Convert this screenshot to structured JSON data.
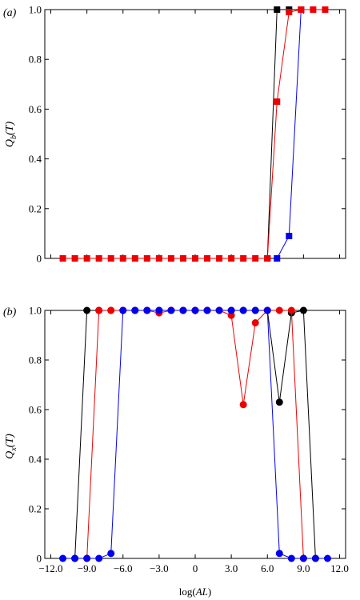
{
  "chart_data": [
    {
      "panel_label": "(a)",
      "type": "line",
      "ylabel": "Q_b(T)",
      "ylabel_main": "Q",
      "ylabel_sub": "b",
      "ylabel_tail": "(T)",
      "xlabel": "",
      "xlim": [
        -12.5,
        12.5
      ],
      "ylim": [
        0,
        1
      ],
      "yticks": [
        0,
        0.2,
        0.4,
        0.6,
        0.8,
        1.0
      ],
      "ytick_labels": [
        "0",
        "0.2",
        "0.4",
        "0.6",
        "0.8",
        "1.0"
      ],
      "xticks": [
        -12,
        -9,
        -6,
        -3,
        0,
        3,
        6,
        9,
        12
      ],
      "xtick_labels": [],
      "marker": "square",
      "series": [
        {
          "color": "#000000",
          "x": [
            6.0,
            6.8,
            7.8
          ],
          "y": [
            0,
            1,
            1
          ]
        },
        {
          "color": "#0000ee",
          "x": [
            6.8,
            7.8,
            8.8
          ],
          "y": [
            0,
            0.09,
            1
          ]
        },
        {
          "color": "#ee0000",
          "x": [
            -11.0,
            -10.0,
            -9.0,
            -8.0,
            -7.0,
            -6.0,
            -5.0,
            -4.0,
            -3.0,
            -2.0,
            -1.0,
            0.0,
            1.0,
            2.0,
            3.0,
            4.0,
            5.0,
            6.0,
            6.8,
            7.8,
            8.8,
            9.8,
            10.8
          ],
          "y": [
            0,
            0,
            0,
            0,
            0,
            0,
            0,
            0,
            0,
            0,
            0,
            0,
            0,
            0,
            0,
            0,
            0,
            0,
            0.63,
            0.99,
            1,
            1,
            1
          ]
        }
      ]
    },
    {
      "panel_label": "(b)",
      "type": "line",
      "ylabel": "Q_x(T)",
      "ylabel_main": "Q",
      "ylabel_sub": "x",
      "ylabel_tail": "(T)",
      "xlabel": "log(AL)",
      "xlabel_pre": "log(",
      "xlabel_it": "AL",
      "xlabel_post": ")",
      "xlim": [
        -12.5,
        12.5
      ],
      "ylim": [
        0,
        1
      ],
      "yticks": [
        0,
        0.2,
        0.4,
        0.6,
        0.8,
        1.0
      ],
      "ytick_labels": [
        "0",
        "0.2",
        "0.4",
        "0.6",
        "0.8",
        "1.0"
      ],
      "xticks": [
        -12,
        -9,
        -6,
        -3,
        0,
        3,
        6,
        9,
        12
      ],
      "xtick_labels": [
        "−12.0",
        "−9.0",
        "−6.0",
        "−3.0",
        "0",
        "3.0",
        "6.0",
        "9.0",
        "12.0"
      ],
      "marker": "circle",
      "series": [
        {
          "color": "#000000",
          "x": [
            -10.0,
            -9.0,
            -8.0,
            -7.0,
            -6.0,
            -5.0,
            -4.0,
            -3.0,
            -2.0,
            -1.0,
            0.0,
            1.0,
            2.0,
            3.0,
            4.0,
            5.0,
            6.0,
            7.0,
            8.0,
            9.0,
            10.0
          ],
          "y": [
            0,
            1,
            1,
            1,
            1,
            1,
            1,
            1,
            1,
            1,
            1,
            1,
            1,
            1,
            1,
            1,
            1,
            0.63,
            0.99,
            1,
            0
          ]
        },
        {
          "color": "#ee0000",
          "x": [
            -9.0,
            -8.0,
            -7.0,
            -6.0,
            -5.0,
            -4.0,
            -3.0,
            -2.0,
            -1.0,
            0.0,
            1.0,
            2.0,
            3.0,
            4.0,
            5.0,
            6.0,
            7.0,
            8.0,
            9.0
          ],
          "y": [
            0,
            1,
            1,
            1,
            1,
            1,
            0.99,
            1,
            1,
            1,
            1,
            1,
            0.98,
            0.62,
            0.95,
            1,
            1,
            1,
            0
          ]
        },
        {
          "color": "#0000ee",
          "x": [
            -11.0,
            -10.0,
            -9.0,
            -8.0,
            -7.0,
            -6.0,
            -5.0,
            -4.0,
            -3.0,
            -2.0,
            -1.0,
            0.0,
            1.0,
            2.0,
            3.0,
            4.0,
            5.0,
            6.0,
            7.0,
            8.0,
            9.0,
            10.0,
            11.0
          ],
          "y": [
            0,
            0,
            0,
            0,
            0.02,
            1,
            1,
            1,
            1,
            1,
            1,
            1,
            1,
            1,
            1,
            1,
            1,
            1,
            0.02,
            0,
            0,
            0,
            0
          ]
        }
      ]
    }
  ]
}
